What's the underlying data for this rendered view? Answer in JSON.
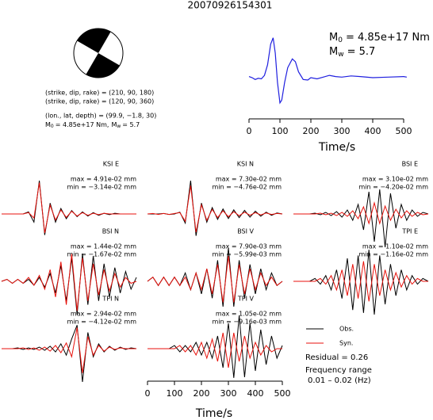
{
  "title": "20070926154301",
  "source_info": {
    "lines": [
      "(strike, dip, rake) = (210, 90, 180)",
      "(strike, dip, rake) = (120, 90, 360)",
      "(lon., lat, depth) = (99.9, −1.8, 30)"
    ],
    "moment": {
      "m0_symbol": "M",
      "m0_sub": "0",
      "m0_text": "= 4.85e+17 Nm,",
      "mw_symbol": "M",
      "mw_sub": "w",
      "mw_text": "= 5.7"
    }
  },
  "chart_data": [
    {
      "type": "line",
      "annotation": {
        "m0_symbol": "M",
        "m0_sub": "0",
        "m0_text": "= 4.85e+17 Nm",
        "mw_symbol": "M",
        "mw_sub": "w",
        "mw_text": "= 5.7"
      },
      "x": [
        0,
        10,
        20,
        30,
        40,
        50,
        60,
        70,
        78,
        85,
        92,
        100,
        106,
        115,
        125,
        140,
        150,
        160,
        175,
        190,
        200,
        220,
        240,
        260,
        280,
        300,
        330,
        360,
        400,
        450,
        500,
        510
      ],
      "series": [
        {
          "color": "#1f1fdf",
          "values": [
            0,
            -2,
            -5,
            -3,
            -4,
            2,
            20,
            55,
            66,
            40,
            -10,
            -45,
            -40,
            -10,
            15,
            30,
            25,
            8,
            -5,
            -6,
            -2,
            -4,
            -1,
            2,
            0,
            -1,
            1,
            0,
            -2,
            -1,
            0,
            -1
          ]
        }
      ],
      "xlim": [
        0,
        510
      ],
      "ylim": [
        -60,
        75
      ],
      "xticks": [
        0,
        100,
        200,
        300,
        400,
        500
      ],
      "xlabel": "Time/s"
    },
    {
      "type": "waveforms",
      "x": [
        0,
        20,
        40,
        60,
        80,
        100,
        120,
        140,
        160,
        180,
        200,
        220,
        240,
        260,
        280,
        300,
        320,
        340,
        360,
        380,
        400,
        420,
        440,
        460,
        480,
        500
      ],
      "xlim": [
        0,
        510
      ],
      "xticks": [
        0,
        100,
        200,
        300,
        400,
        500
      ],
      "xlabel": "Time/s",
      "legend": [
        {
          "name": "Obs.",
          "color": "#000000"
        },
        {
          "name": "Syn.",
          "color": "#e8120c"
        }
      ],
      "residual": "Residual = 0.26",
      "frequency_title": "Frequency range",
      "frequency_range": "0.01 – 0.02 (Hz)",
      "stations": [
        {
          "label": "KSI E",
          "max_label": "max = 4.91e-02 mm",
          "min_label": "min = −3.14e-02 mm",
          "obs": [
            0,
            0,
            0,
            0,
            0,
            0.003,
            -0.012,
            0.049,
            -0.031,
            0.016,
            -0.012,
            0.008,
            -0.007,
            0.005,
            -0.004,
            0.003,
            -0.003,
            0.002,
            -0.002,
            0.001,
            -0.001,
            0.001,
            0,
            0,
            0,
            0
          ],
          "syn": [
            0,
            0,
            0,
            0,
            0,
            0.002,
            -0.006,
            0.046,
            -0.028,
            0.013,
            -0.009,
            0.006,
            -0.005,
            0.004,
            -0.003,
            0.002,
            -0.002,
            0.001,
            -0.001,
            0.001,
            0,
            0,
            0,
            0,
            0,
            0
          ]
        },
        {
          "label": "KSI N",
          "max_label": "max = 7.30e-02 mm",
          "min_label": "min = −4.76e-02 mm",
          "obs": [
            0,
            0,
            0,
            0.001,
            -0.001,
            0,
            0.004,
            -0.02,
            0.073,
            -0.048,
            0.024,
            -0.018,
            0.014,
            -0.012,
            0.011,
            -0.01,
            0.009,
            -0.008,
            0.008,
            -0.007,
            0.006,
            -0.005,
            0.004,
            -0.003,
            0.002,
            0
          ],
          "syn": [
            0,
            0.001,
            -0.001,
            0.001,
            -0.001,
            0.001,
            0.003,
            -0.016,
            0.062,
            -0.04,
            0.02,
            -0.014,
            0.01,
            -0.008,
            0.007,
            -0.006,
            0.005,
            -0.004,
            0.004,
            -0.003,
            0.003,
            -0.002,
            0.002,
            -0.001,
            0.001,
            0
          ]
        },
        {
          "label": "BSI E",
          "max_label": "max = 3.10e-02 mm",
          "min_label": "min = −4.20e-02 mm",
          "obs": [
            0,
            0,
            0,
            0,
            0.001,
            -0.001,
            0.002,
            -0.002,
            0.003,
            -0.004,
            0.005,
            -0.008,
            0.012,
            -0.02,
            0.028,
            -0.035,
            0.031,
            -0.042,
            0.026,
            -0.018,
            0.012,
            -0.008,
            0.005,
            -0.003,
            0.002,
            0
          ],
          "syn": [
            0,
            0,
            0,
            0,
            0,
            0.001,
            -0.001,
            0.001,
            -0.002,
            0.002,
            -0.003,
            0.004,
            -0.006,
            0.009,
            -0.012,
            0.014,
            -0.012,
            0.01,
            -0.008,
            0.006,
            -0.005,
            0.004,
            -0.003,
            0.002,
            -0.001,
            0
          ]
        },
        {
          "label": "BSI N",
          "max_label": "max = 1.44e-02 mm",
          "min_label": "min = −1.67e-02 mm",
          "obs": [
            0,
            0.001,
            -0.001,
            0.001,
            -0.001,
            0.001,
            -0.002,
            0.002,
            -0.003,
            0.004,
            -0.006,
            0.008,
            -0.01,
            0.012,
            -0.017,
            0.014,
            -0.012,
            0.013,
            -0.01,
            0.009,
            -0.008,
            0.007,
            -0.006,
            0.005,
            -0.004,
            0.002
          ],
          "syn": [
            0,
            0.001,
            -0.001,
            0.001,
            -0.001,
            0.002,
            -0.002,
            0.003,
            -0.004,
            0.006,
            -0.008,
            0.01,
            -0.012,
            0.014,
            -0.015,
            0.012,
            -0.01,
            0.009,
            -0.007,
            0.006,
            -0.005,
            0.004,
            -0.003,
            0.002,
            -0.001,
            0
          ]
        },
        {
          "label": "BSI V",
          "max_label": "max = 7.90e-03 mm",
          "min_label": "min = −5.99e-03 mm",
          "obs": [
            0,
            0.001,
            -0.001,
            0.001,
            -0.001,
            0.001,
            -0.001,
            0.002,
            -0.002,
            0.002,
            -0.003,
            0.003,
            -0.004,
            0.005,
            -0.006,
            0.0079,
            -0.006,
            0.005,
            -0.004,
            0.004,
            -0.003,
            0.003,
            -0.002,
            0.002,
            -0.001,
            0
          ],
          "syn": [
            0,
            0.001,
            -0.001,
            0.001,
            -0.001,
            0.001,
            -0.001,
            0.001,
            -0.002,
            0.002,
            -0.002,
            0.003,
            -0.003,
            0.004,
            -0.005,
            0.006,
            -0.005,
            0.004,
            -0.003,
            0.003,
            -0.002,
            0.002,
            -0.001,
            0.001,
            -0.001,
            0
          ]
        },
        {
          "label": "TPI E",
          "max_label": "max = 1.10e-02 mm",
          "min_label": "min = −1.16e-02 mm",
          "obs": [
            0,
            0,
            0,
            0,
            0.001,
            -0.001,
            0.002,
            -0.003,
            0.004,
            -0.006,
            0.008,
            -0.01,
            0.009,
            -0.011,
            0.011,
            -0.0116,
            0.009,
            -0.008,
            0.006,
            -0.005,
            0.004,
            -0.003,
            0.002,
            -0.001,
            0.001,
            0
          ],
          "syn": [
            0,
            0,
            0,
            0,
            0,
            0.001,
            -0.001,
            0.002,
            -0.003,
            0.004,
            -0.005,
            0.006,
            -0.006,
            0.007,
            -0.007,
            0.006,
            -0.005,
            0.004,
            -0.003,
            0.003,
            -0.002,
            0.002,
            -0.001,
            0.001,
            0,
            0
          ]
        },
        {
          "label": "TPI N",
          "max_label": "max = 2.94e-02 mm",
          "min_label": "min = −4.12e-02 mm",
          "obs": [
            0,
            0,
            0,
            0.001,
            -0.001,
            0.001,
            -0.001,
            0.002,
            -0.002,
            0.003,
            -0.004,
            0.006,
            -0.008,
            0.012,
            0.029,
            -0.041,
            0.02,
            -0.01,
            0.006,
            -0.004,
            0.003,
            -0.002,
            0.002,
            -0.001,
            0.001,
            0
          ],
          "syn": [
            0,
            0,
            0,
            0,
            0.001,
            -0.001,
            0.001,
            -0.002,
            0.002,
            -0.003,
            0.004,
            -0.005,
            0.007,
            -0.01,
            0.026,
            -0.03,
            0.015,
            -0.008,
            0.004,
            -0.003,
            0.002,
            -0.001,
            0.001,
            0,
            0,
            0
          ]
        },
        {
          "label": "TPI V",
          "max_label": "max = 1.05e-02 mm",
          "min_label": "min = −9.16e-03 mm",
          "obs": [
            0,
            0,
            0,
            0,
            0,
            0.001,
            -0.001,
            0.001,
            -0.001,
            0.002,
            -0.002,
            0.002,
            -0.003,
            0.004,
            -0.006,
            0.008,
            -0.0092,
            0.0105,
            -0.009,
            0.008,
            -0.007,
            0.006,
            -0.005,
            0.004,
            -0.003,
            0.001
          ],
          "syn": [
            0,
            0,
            0,
            0,
            0,
            0,
            0.001,
            -0.001,
            0.001,
            -0.002,
            0.002,
            -0.003,
            0.003,
            -0.004,
            0.005,
            -0.006,
            0.005,
            -0.004,
            0.004,
            -0.003,
            0.002,
            -0.002,
            0.001,
            -0.001,
            0,
            0
          ]
        }
      ]
    }
  ]
}
